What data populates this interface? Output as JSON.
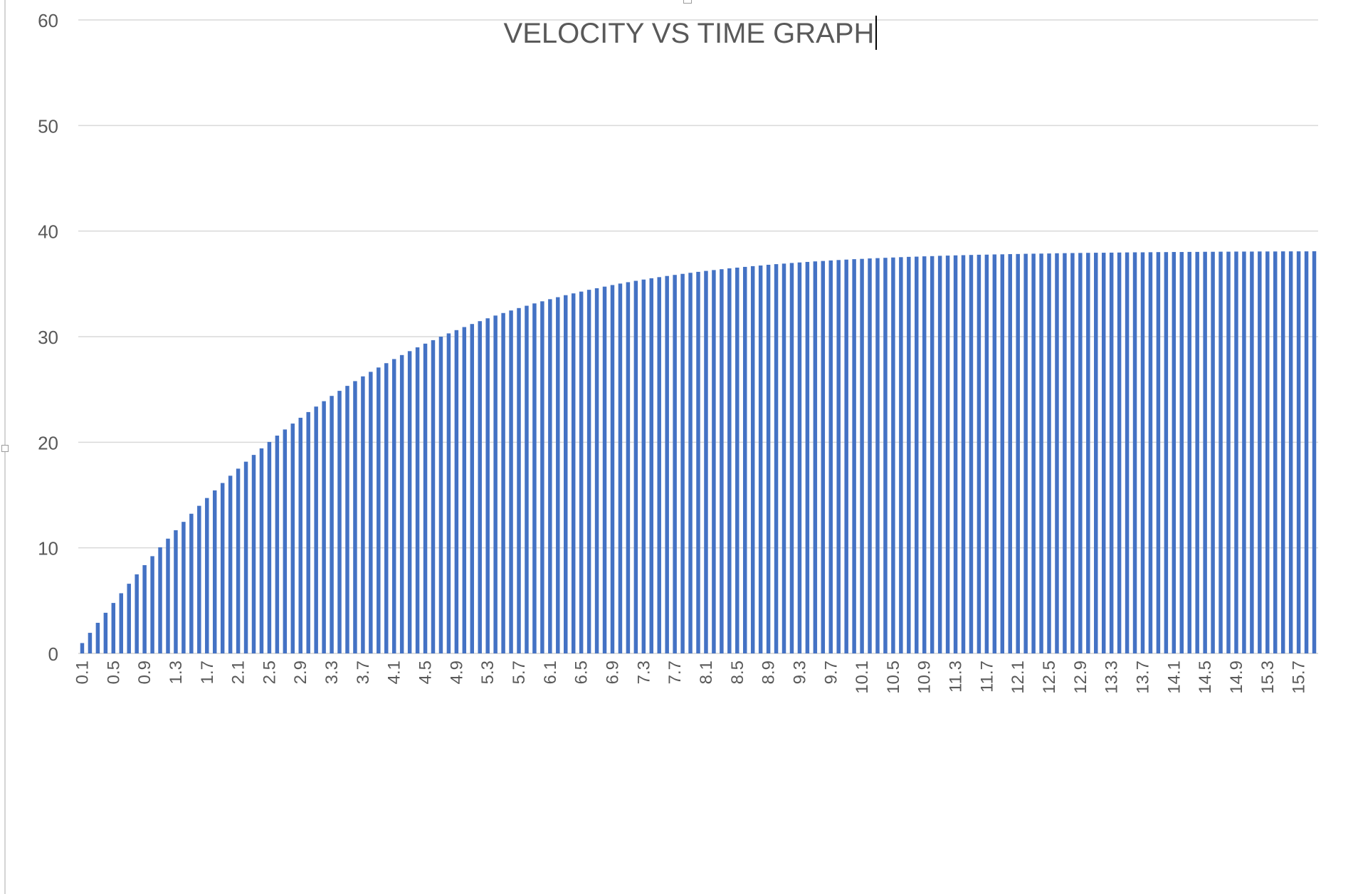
{
  "chart_data": {
    "type": "bar",
    "title": "VELOCITY VS TIME GRAPH",
    "xlabel": "",
    "ylabel": "",
    "ylim": [
      0,
      60
    ],
    "yticks": [
      0,
      10,
      20,
      30,
      40,
      50,
      60
    ],
    "grid": true,
    "legend": "none",
    "bar_color": "#4472C4",
    "categories": [
      "0.1",
      "0.2",
      "0.3",
      "0.4",
      "0.5",
      "0.6",
      "0.7",
      "0.8",
      "0.9",
      "1",
      "1.1",
      "1.2",
      "1.3",
      "1.4",
      "1.5",
      "1.6",
      "1.7",
      "1.8",
      "1.9",
      "2",
      "2.1",
      "2.2",
      "2.3",
      "2.4",
      "2.5",
      "2.6",
      "2.7",
      "2.8",
      "2.9",
      "3",
      "3.1",
      "3.2",
      "3.3",
      "3.4",
      "3.5",
      "3.6",
      "3.7",
      "3.8",
      "3.9",
      "4",
      "4.1",
      "4.2",
      "4.3",
      "4.4",
      "4.5",
      "4.6",
      "4.7",
      "4.8",
      "4.9",
      "5",
      "5.1",
      "5.2",
      "5.3",
      "5.4",
      "5.5",
      "5.6",
      "5.7",
      "5.8",
      "5.9",
      "6",
      "6.1",
      "6.2",
      "6.3",
      "6.4",
      "6.5",
      "6.6",
      "6.7",
      "6.8",
      "6.9",
      "7",
      "7.1",
      "7.2",
      "7.3",
      "7.4",
      "7.5",
      "7.6",
      "7.7",
      "7.8",
      "7.9",
      "8",
      "8.1",
      "8.2",
      "8.3",
      "8.4",
      "8.5",
      "8.6",
      "8.7",
      "8.8",
      "8.9",
      "9",
      "9.1",
      "9.2",
      "9.3",
      "9.4",
      "9.5",
      "9.6",
      "9.7",
      "9.8",
      "9.9",
      "10",
      "10.1",
      "10.2",
      "10.3",
      "10.4",
      "10.5",
      "10.6",
      "10.7",
      "10.8",
      "10.9",
      "11",
      "11.1",
      "11.2",
      "11.3",
      "11.4",
      "11.5",
      "11.6",
      "11.7",
      "11.8",
      "11.9",
      "12",
      "12.1",
      "12.2",
      "12.3",
      "12.4",
      "12.5",
      "12.6",
      "12.7",
      "12.8",
      "12.9",
      "13",
      "13.1",
      "13.2",
      "13.3",
      "13.4",
      "13.5",
      "13.6",
      "13.7",
      "13.8",
      "13.9",
      "14",
      "14.1",
      "14.2",
      "14.3",
      "14.4",
      "14.5",
      "14.6",
      "14.7",
      "14.8",
      "14.9",
      "15",
      "15.1",
      "15.2",
      "15.3",
      "15.4",
      "15.5",
      "15.6",
      "15.7",
      "15.8",
      "15.9"
    ],
    "values": [
      0.98,
      1.95,
      2.9,
      3.85,
      4.78,
      5.7,
      6.6,
      7.49,
      8.36,
      9.21,
      10.05,
      10.87,
      11.67,
      12.46,
      13.23,
      13.98,
      14.72,
      15.44,
      16.14,
      16.83,
      17.5,
      18.16,
      18.8,
      19.42,
      20.03,
      20.63,
      21.21,
      21.77,
      22.32,
      22.86,
      23.38,
      23.89,
      24.39,
      24.87,
      25.34,
      25.79,
      26.24,
      26.67,
      27.08,
      27.49,
      27.88,
      28.26,
      28.63,
      28.99,
      29.34,
      29.67,
      30.0,
      30.31,
      30.62,
      30.91,
      31.2,
      31.47,
      31.74,
      32.0,
      32.24,
      32.48,
      32.71,
      32.93,
      33.15,
      33.35,
      33.55,
      33.74,
      33.93,
      34.1,
      34.27,
      34.44,
      34.59,
      34.74,
      34.89,
      35.03,
      35.16,
      35.29,
      35.41,
      35.53,
      35.64,
      35.75,
      35.85,
      35.95,
      36.05,
      36.14,
      36.23,
      36.31,
      36.39,
      36.47,
      36.54,
      36.61,
      36.68,
      36.74,
      36.81,
      36.87,
      36.92,
      36.98,
      37.03,
      37.08,
      37.13,
      37.17,
      37.22,
      37.26,
      37.3,
      37.34,
      37.37,
      37.41,
      37.44,
      37.47,
      37.5,
      37.53,
      37.56,
      37.58,
      37.61,
      37.63,
      37.66,
      37.68,
      37.7,
      37.72,
      37.74,
      37.76,
      37.77,
      37.79,
      37.8,
      37.82,
      37.83,
      37.85,
      37.86,
      37.87,
      37.88,
      37.9,
      37.91,
      37.92,
      37.93,
      37.94,
      37.95,
      37.95,
      37.96,
      37.97,
      37.98,
      37.99,
      37.99,
      38.0,
      38.01,
      38.01,
      38.02,
      38.02,
      38.03,
      38.03,
      38.04,
      38.04,
      38.05,
      38.05,
      38.06,
      38.06,
      38.06,
      38.07,
      38.07,
      38.07,
      38.08,
      38.08,
      38.08,
      38.08,
      38.09
    ],
    "shown_tick_labels": [
      "0.1",
      "0.5",
      "0.9",
      "1.3",
      "1.7",
      "2.1",
      "2.5",
      "2.9",
      "3.3",
      "3.7",
      "4.1",
      "4.5",
      "4.9",
      "5.3",
      "5.7",
      "6.1",
      "6.5",
      "6.9",
      "7.3",
      "7.7",
      "8.1",
      "8.5",
      "8.9",
      "9.3",
      "9.7",
      "10.1",
      "10.5",
      "10.9",
      "11.3",
      "11.7",
      "12.1",
      "12.5",
      "12.9",
      "13.3",
      "13.7",
      "14.1",
      "14.5",
      "14.9",
      "15.3",
      "15.7"
    ]
  }
}
